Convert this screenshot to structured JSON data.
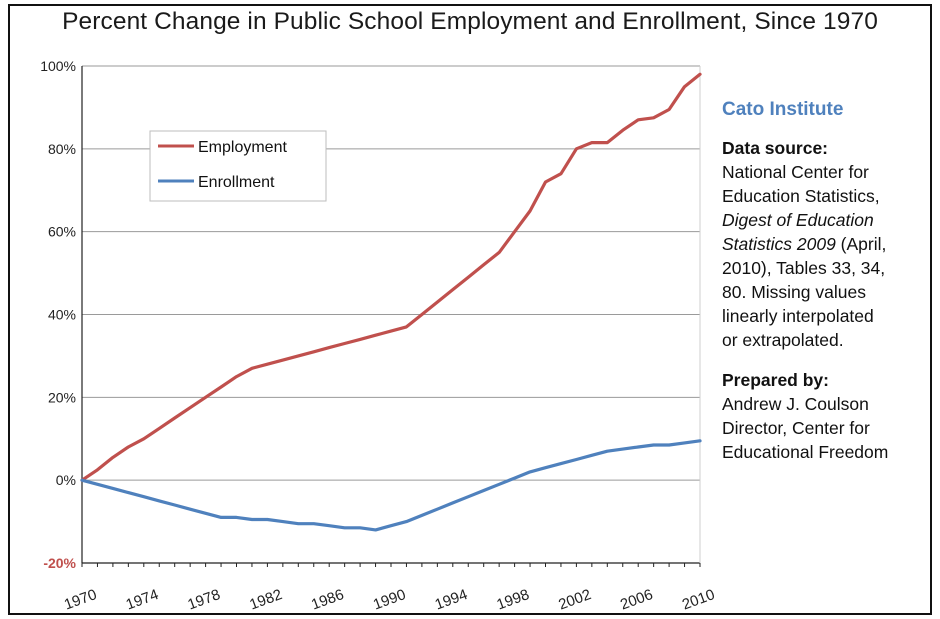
{
  "chart_data": {
    "type": "line",
    "title": "Percent Change in Public School Employment and Enrollment, Since 1970",
    "xlabel": "",
    "ylabel": "",
    "xlim": [
      1970,
      2010
    ],
    "ylim": [
      -20,
      100
    ],
    "yticks": [
      {
        "value": -20,
        "label": "-20%"
      },
      {
        "value": 0,
        "label": "0%"
      },
      {
        "value": 20,
        "label": "20%"
      },
      {
        "value": 40,
        "label": "40%"
      },
      {
        "value": 60,
        "label": "60%"
      },
      {
        "value": 80,
        "label": "80%"
      },
      {
        "value": 100,
        "label": "100%"
      }
    ],
    "xticks": [
      1970,
      1974,
      1978,
      1982,
      1986,
      1990,
      1994,
      1998,
      2002,
      2006,
      2010
    ],
    "grid": "horizontal",
    "legend": "top-left",
    "series": [
      {
        "name": "Employment",
        "color": "#c0504d",
        "x": [
          1970,
          1971,
          1972,
          1973,
          1974,
          1975,
          1976,
          1977,
          1978,
          1979,
          1980,
          1981,
          1982,
          1983,
          1984,
          1985,
          1986,
          1987,
          1988,
          1989,
          1990,
          1991,
          1992,
          1993,
          1994,
          1995,
          1996,
          1997,
          1998,
          1999,
          2000,
          2001,
          2002,
          2003,
          2004,
          2005,
          2006,
          2007,
          2008,
          2009,
          2010
        ],
        "values": [
          0,
          2.5,
          5.5,
          8,
          10,
          12.5,
          15,
          17.5,
          20,
          22.5,
          25,
          27,
          28,
          29,
          30,
          31,
          32,
          33,
          34,
          35,
          36,
          37,
          40,
          43,
          46,
          49,
          52,
          55,
          60,
          65,
          72,
          74,
          80,
          81.5,
          81.5,
          84.5,
          87,
          87.5,
          89.5,
          95,
          98
        ]
      },
      {
        "name": "Enrollment",
        "color": "#4f81bd",
        "x": [
          1970,
          1971,
          1972,
          1973,
          1974,
          1975,
          1976,
          1977,
          1978,
          1979,
          1980,
          1981,
          1982,
          1983,
          1984,
          1985,
          1986,
          1987,
          1988,
          1989,
          1990,
          1991,
          1992,
          1993,
          1994,
          1995,
          1996,
          1997,
          1998,
          1999,
          2000,
          2001,
          2002,
          2003,
          2004,
          2005,
          2006,
          2007,
          2008,
          2009,
          2010
        ],
        "values": [
          0,
          -1,
          -2,
          -3,
          -4,
          -5,
          -6,
          -7,
          -8,
          -9,
          -9,
          -9.5,
          -9.5,
          -10,
          -10.5,
          -10.5,
          -11,
          -11.5,
          -11.5,
          -12,
          -11,
          -10,
          -8.5,
          -7,
          -5.5,
          -4,
          -2.5,
          -1,
          0.5,
          2,
          3,
          4,
          5,
          6,
          7,
          7.5,
          8,
          8.5,
          8.5,
          9,
          9.5
        ]
      }
    ]
  },
  "sidebar": {
    "org": "Cato Institute",
    "source_heading": "Data source:",
    "source_line1": "National Center for",
    "source_line2": "Education Statistics,",
    "source_italic1": "Digest of Education",
    "source_italic2": "Statistics 2009",
    "source_line3": " (April,",
    "source_line4": "2010), Tables 33, 34,",
    "source_line5": "80.  Missing values",
    "source_line6": "linearly interpolated",
    "source_line7": "or extrapolated.",
    "prepared_heading": "Prepared by:",
    "prepared_line1": "Andrew J. Coulson",
    "prepared_line2": "Director, Center for",
    "prepared_line3": "Educational Freedom"
  },
  "colors": {
    "zero_line": "#9a9a9a",
    "grid": "#9a9a9a",
    "axis": "#222222",
    "negative_tick": "#c0504d"
  }
}
